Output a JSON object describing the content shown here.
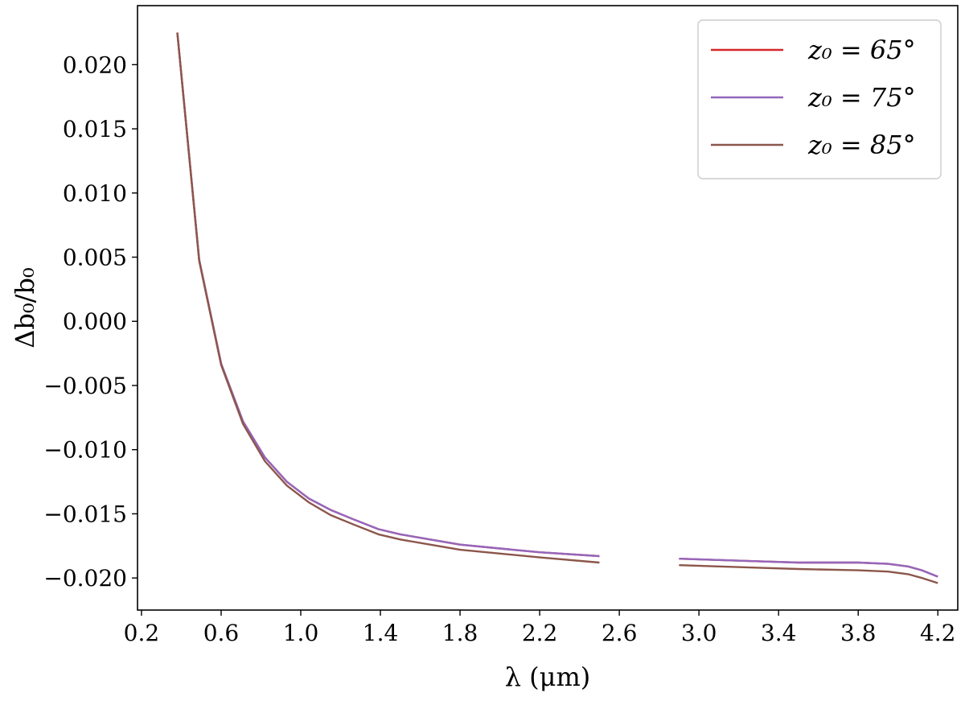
{
  "chart_data": {
    "type": "line",
    "xlabel": "λ (μm)",
    "ylabel": "Δb₀/b₀",
    "xlim": [
      0.18,
      4.3
    ],
    "ylim": [
      -0.0225,
      0.0246
    ],
    "xticks": [
      0.2,
      0.6,
      1.0,
      1.4,
      1.8,
      2.2,
      2.6,
      3.0,
      3.4,
      3.8,
      4.2
    ],
    "xtick_labels": [
      "0.2",
      "0.6",
      "1.0",
      "1.4",
      "1.8",
      "2.2",
      "2.6",
      "3.0",
      "3.4",
      "3.8",
      "4.2"
    ],
    "yticks": [
      0.02,
      0.015,
      0.01,
      0.005,
      0.0,
      -0.005,
      -0.01,
      -0.015,
      -0.02
    ],
    "ytick_labels": [
      "0.020",
      "0.015",
      "0.010",
      "0.005",
      "0.000",
      "−0.005",
      "−0.010",
      "−0.015",
      "−0.020"
    ],
    "grid": false,
    "legend_position": "top-right",
    "series": [
      {
        "name": "z₀ = 65°",
        "color": "#d62728",
        "segments": [
          [
            [
              0.38,
              0.0225
            ],
            [
              0.49,
              0.0048
            ],
            [
              0.6,
              -0.0033
            ],
            [
              0.71,
              -0.0078
            ],
            [
              0.82,
              -0.0106
            ],
            [
              0.93,
              -0.0125
            ],
            [
              1.04,
              -0.0138
            ],
            [
              1.15,
              -0.0147
            ],
            [
              1.26,
              -0.0154
            ],
            [
              1.39,
              -0.0162
            ],
            [
              1.5,
              -0.0166
            ],
            [
              1.65,
              -0.017
            ],
            [
              1.8,
              -0.0174
            ],
            [
              2.0,
              -0.0177
            ],
            [
              2.2,
              -0.018
            ],
            [
              2.5,
              -0.0183
            ]
          ],
          [
            [
              2.9,
              -0.0185
            ],
            [
              3.1,
              -0.0186
            ],
            [
              3.3,
              -0.0187
            ],
            [
              3.5,
              -0.0188
            ],
            [
              3.8,
              -0.0188
            ],
            [
              3.95,
              -0.0189
            ],
            [
              4.05,
              -0.0191
            ],
            [
              4.12,
              -0.0194
            ],
            [
              4.2,
              -0.0199
            ]
          ]
        ]
      },
      {
        "name": "z₀ = 75°",
        "color": "#9467bd",
        "segments": [
          [
            [
              0.38,
              0.0225
            ],
            [
              0.49,
              0.0048
            ],
            [
              0.6,
              -0.0033
            ],
            [
              0.71,
              -0.0078
            ],
            [
              0.82,
              -0.0106
            ],
            [
              0.93,
              -0.0125
            ],
            [
              1.04,
              -0.0138
            ],
            [
              1.15,
              -0.0147
            ],
            [
              1.26,
              -0.0154
            ],
            [
              1.39,
              -0.0162
            ],
            [
              1.5,
              -0.0166
            ],
            [
              1.65,
              -0.017
            ],
            [
              1.8,
              -0.0174
            ],
            [
              2.0,
              -0.0177
            ],
            [
              2.2,
              -0.018
            ],
            [
              2.5,
              -0.0183
            ]
          ],
          [
            [
              2.9,
              -0.0185
            ],
            [
              3.1,
              -0.0186
            ],
            [
              3.3,
              -0.0187
            ],
            [
              3.5,
              -0.0188
            ],
            [
              3.8,
              -0.0188
            ],
            [
              3.95,
              -0.0189
            ],
            [
              4.05,
              -0.0191
            ],
            [
              4.12,
              -0.0194
            ],
            [
              4.2,
              -0.0199
            ]
          ]
        ]
      },
      {
        "name": "z₀ = 85°",
        "color": "#8c564b",
        "segments": [
          [
            [
              0.38,
              0.0225
            ],
            [
              0.49,
              0.0047
            ],
            [
              0.6,
              -0.0034
            ],
            [
              0.71,
              -0.008
            ],
            [
              0.82,
              -0.0109
            ],
            [
              0.93,
              -0.0128
            ],
            [
              1.04,
              -0.0141
            ],
            [
              1.15,
              -0.0151
            ],
            [
              1.26,
              -0.0158
            ],
            [
              1.39,
              -0.0166
            ],
            [
              1.5,
              -0.017
            ],
            [
              1.65,
              -0.0174
            ],
            [
              1.8,
              -0.0178
            ],
            [
              2.0,
              -0.0181
            ],
            [
              2.2,
              -0.0184
            ],
            [
              2.5,
              -0.0188
            ]
          ],
          [
            [
              2.9,
              -0.019
            ],
            [
              3.1,
              -0.0191
            ],
            [
              3.3,
              -0.0192
            ],
            [
              3.5,
              -0.0193
            ],
            [
              3.8,
              -0.0194
            ],
            [
              3.95,
              -0.0195
            ],
            [
              4.05,
              -0.0197
            ],
            [
              4.12,
              -0.02
            ],
            [
              4.2,
              -0.0204
            ]
          ]
        ]
      }
    ]
  }
}
